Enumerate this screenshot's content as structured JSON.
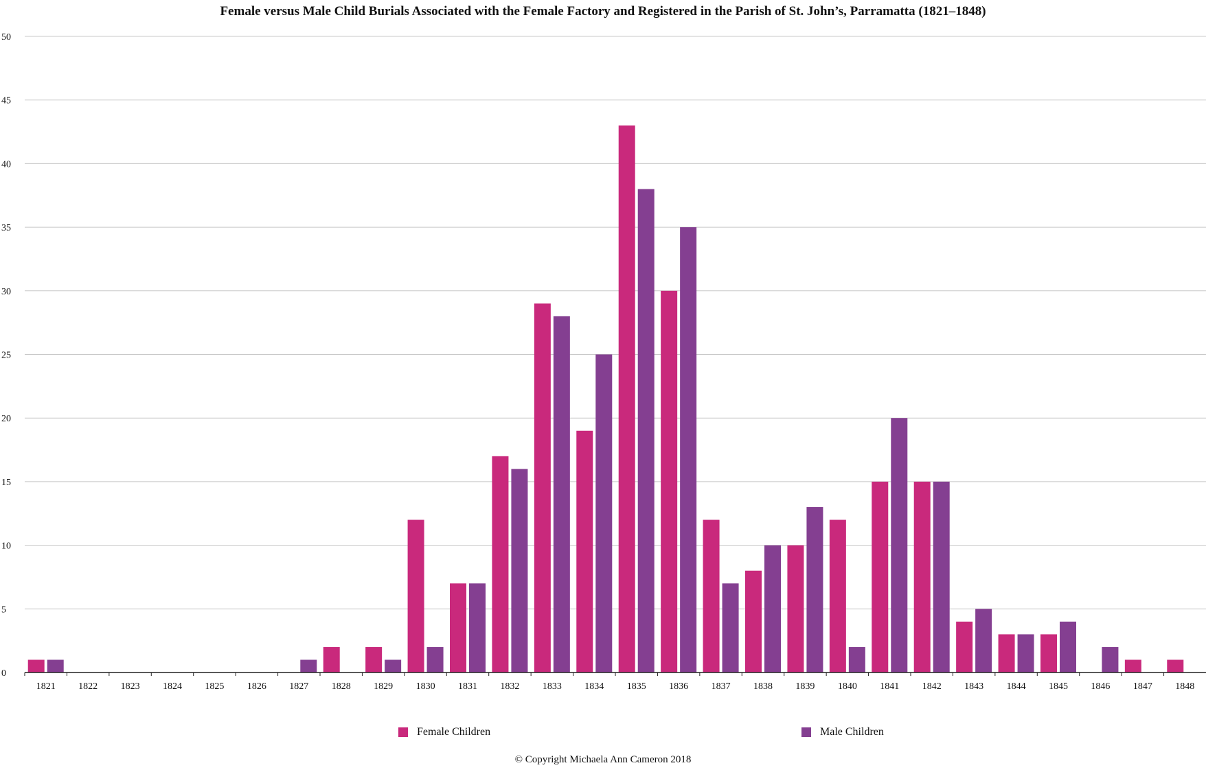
{
  "chart_data": {
    "type": "bar",
    "title": "Female versus Male Child Burials Associated with the Female Factory and Registered in the Parish of St. John’s, Parramatta (1821–1848)",
    "xlabel": "",
    "ylabel": "",
    "ylim": [
      0,
      50
    ],
    "yticks": [
      0,
      5,
      10,
      15,
      20,
      25,
      30,
      35,
      40,
      45,
      50
    ],
    "grid": true,
    "legend_position": "bottom",
    "categories": [
      "1821",
      "1822",
      "1823",
      "1824",
      "1825",
      "1826",
      "1827",
      "1828",
      "1829",
      "1830",
      "1831",
      "1832",
      "1833",
      "1834",
      "1835",
      "1836",
      "1837",
      "1838",
      "1839",
      "1840",
      "1841",
      "1842",
      "1843",
      "1844",
      "1845",
      "1846",
      "1847",
      "1848"
    ],
    "series": [
      {
        "name": "Female Children",
        "color": "#c9297c",
        "values": [
          1,
          0,
          0,
          0,
          0,
          0,
          0,
          2,
          2,
          12,
          7,
          17,
          29,
          19,
          43,
          30,
          12,
          8,
          10,
          12,
          15,
          15,
          4,
          3,
          3,
          0,
          1,
          1
        ]
      },
      {
        "name": "Male Children",
        "color": "#843f91",
        "values": [
          1,
          0,
          0,
          0,
          0,
          0,
          1,
          0,
          1,
          2,
          7,
          16,
          28,
          25,
          38,
          35,
          7,
          10,
          13,
          2,
          20,
          15,
          5,
          3,
          4,
          2,
          0,
          0
        ]
      }
    ]
  },
  "footer": {
    "copyright": "© Copyright Michaela Ann Cameron 2018"
  }
}
